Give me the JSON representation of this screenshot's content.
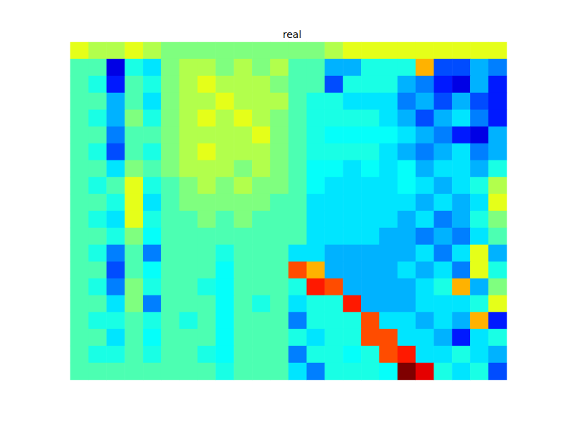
{
  "chart_data": {
    "type": "heatmap",
    "title": "real",
    "color": "jet",
    "tick_labels": false,
    "zlim": [
      0,
      10
    ],
    "cells": [
      [
        6,
        5.5,
        5.5,
        6,
        5.5,
        5,
        5,
        5,
        5,
        5,
        5,
        5,
        5,
        5,
        5.5,
        6,
        6,
        6,
        6,
        6,
        6,
        6,
        6,
        6
      ],
      [
        4.5,
        4.5,
        1,
        4,
        3.5,
        5,
        5.5,
        5.5,
        5,
        5.5,
        5,
        5.5,
        4.5,
        4.5,
        3,
        3,
        4,
        4,
        4,
        7,
        2,
        2,
        3,
        2.5
      ],
      [
        4.5,
        4,
        1.5,
        4.5,
        4,
        5,
        5.5,
        6,
        5.5,
        5.5,
        5.5,
        5,
        4.5,
        4.5,
        2,
        4,
        4,
        4,
        3,
        2.5,
        1.5,
        1,
        3,
        1.5
      ],
      [
        4.5,
        4.5,
        3,
        4.5,
        3.5,
        5,
        5.5,
        5.5,
        6,
        5.5,
        5.5,
        5.5,
        4.5,
        4,
        4,
        3.5,
        3.5,
        3.5,
        2.5,
        3,
        2,
        3,
        2,
        1.5
      ],
      [
        4.5,
        4,
        3,
        5,
        4,
        5,
        5.5,
        6,
        5.5,
        6,
        5.5,
        5,
        4.5,
        4,
        4,
        4,
        4,
        3.5,
        3,
        2,
        3,
        3.5,
        2.5,
        1.5
      ],
      [
        4.5,
        4.5,
        2.5,
        4.5,
        4.5,
        5,
        5.5,
        5.5,
        5.5,
        5.5,
        6,
        5,
        4.5,
        4,
        3.8,
        3.8,
        3.8,
        3.8,
        3.5,
        3,
        2.5,
        1.5,
        1,
        3
      ],
      [
        4.5,
        4,
        2,
        4.5,
        4,
        5,
        5.5,
        6,
        5.5,
        5.5,
        5.5,
        5,
        4.5,
        4,
        4,
        4,
        4,
        3.5,
        3,
        2.5,
        3,
        3.5,
        2.5,
        3
      ],
      [
        4.5,
        4.5,
        3.5,
        5,
        4.5,
        5,
        5.5,
        5.5,
        5.5,
        5,
        5.5,
        5,
        4.5,
        3.8,
        3.8,
        3.5,
        3.8,
        3.5,
        3.8,
        3,
        3.5,
        3.5,
        3,
        4
      ],
      [
        4.5,
        4,
        4.5,
        6,
        4,
        4.5,
        5,
        5.5,
        5,
        5.5,
        5,
        5,
        4.5,
        3.8,
        3.5,
        3.5,
        3.5,
        3.5,
        3.8,
        3.5,
        3,
        3.5,
        4,
        5.5
      ],
      [
        4.5,
        4.5,
        4,
        6,
        3.5,
        4.5,
        5,
        5,
        5,
        5,
        5,
        4.5,
        4.5,
        3.5,
        3.5,
        3.5,
        3.5,
        3.5,
        3.5,
        3,
        3.5,
        3,
        3.5,
        6
      ],
      [
        4.5,
        4,
        3.5,
        6,
        4,
        4.5,
        4.5,
        5,
        4.5,
        5,
        4.5,
        4.5,
        4.5,
        3.5,
        3.5,
        3.5,
        3.5,
        3.5,
        3,
        3.5,
        2.5,
        3,
        4,
        5
      ],
      [
        4.5,
        4.5,
        4,
        5,
        3.8,
        4.5,
        4.5,
        4.5,
        4.5,
        4.5,
        4.5,
        4.5,
        4.5,
        3.5,
        3.5,
        3.5,
        3.5,
        3,
        3,
        2.5,
        3,
        2.5,
        3.5,
        4.5
      ],
      [
        4.5,
        4,
        2.5,
        4.5,
        2.5,
        4.5,
        4.5,
        4.5,
        4,
        4.5,
        4.5,
        4.5,
        3.5,
        3.5,
        3,
        3,
        3,
        3,
        3,
        3.5,
        2.5,
        3.5,
        6,
        3
      ],
      [
        4.5,
        4.5,
        2,
        4.5,
        3.8,
        4.5,
        4.5,
        4.5,
        3.8,
        4.5,
        4.5,
        4.5,
        8,
        7,
        3,
        3,
        3,
        3,
        3.5,
        3,
        3.5,
        2.5,
        6,
        4
      ],
      [
        4.5,
        4,
        2.5,
        5,
        4,
        4.5,
        4.5,
        4,
        3.8,
        4.5,
        4.5,
        4.5,
        4,
        8.5,
        8,
        3,
        3,
        3,
        3,
        3.5,
        4,
        7,
        3,
        5
      ],
      [
        4.5,
        4.5,
        3.5,
        5,
        2.5,
        4.5,
        4.5,
        4.5,
        3.8,
        4.5,
        4,
        4.5,
        3.5,
        4,
        4,
        8.5,
        3,
        3,
        3,
        3.5,
        3.5,
        3.5,
        4,
        6
      ],
      [
        4.5,
        4,
        4,
        4.5,
        4,
        4.5,
        4,
        4.5,
        3.8,
        4.5,
        4.5,
        4.5,
        2.5,
        4,
        4,
        4,
        8,
        3.5,
        3.5,
        3,
        3.5,
        3,
        7,
        1.5
      ],
      [
        4.5,
        4.5,
        3.5,
        4.5,
        3.8,
        4.5,
        4.5,
        4.5,
        3.8,
        4.5,
        4.5,
        4.5,
        4,
        3.5,
        4,
        4,
        8,
        8,
        3.5,
        3.5,
        3,
        1.5,
        3.5,
        4
      ],
      [
        4.5,
        4,
        4,
        4.5,
        4,
        4.5,
        4.5,
        4,
        3.8,
        4.5,
        4.5,
        4.5,
        2.5,
        4,
        4,
        3.8,
        4,
        8,
        8.5,
        3.5,
        3.5,
        4,
        3.5,
        3
      ],
      [
        4.5,
        4.5,
        4.5,
        4.5,
        4.5,
        4.5,
        4.5,
        4.5,
        4,
        4.5,
        4.5,
        4.5,
        3.5,
        2.5,
        4,
        4,
        4,
        3.8,
        10,
        9,
        4,
        3.5,
        4,
        2
      ]
    ]
  }
}
